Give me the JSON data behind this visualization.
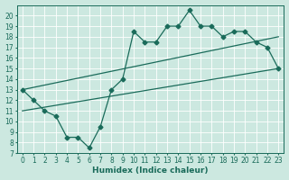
{
  "xlabel": "Humidex (Indice chaleur)",
  "bg_color": "#cce8e0",
  "line_color": "#1a6b5a",
  "grid_color": "#ffffff",
  "xlim": [
    -0.5,
    23.5
  ],
  "ylim": [
    7,
    21
  ],
  "xticks": [
    0,
    1,
    2,
    3,
    4,
    5,
    6,
    7,
    8,
    9,
    10,
    11,
    12,
    13,
    14,
    15,
    16,
    17,
    18,
    19,
    20,
    21,
    22,
    23
  ],
  "yticks": [
    7,
    8,
    9,
    10,
    11,
    12,
    13,
    14,
    15,
    16,
    17,
    18,
    19,
    20
  ],
  "line1_x": [
    0,
    1,
    2,
    3,
    4,
    5,
    6,
    7,
    8,
    9,
    10,
    11,
    12,
    13,
    14,
    15,
    16,
    17,
    18,
    19,
    20,
    21,
    22,
    23
  ],
  "line1_y": [
    13,
    12,
    11,
    10.5,
    8.5,
    8.5,
    7.5,
    9.5,
    13,
    14,
    18.5,
    17.5,
    17.5,
    19,
    19,
    20.5,
    19,
    19,
    18,
    18.5,
    18.5,
    17.5,
    17,
    15
  ],
  "line2_x": [
    0,
    23
  ],
  "line2_y": [
    11,
    15
  ],
  "line3_x": [
    0,
    23
  ],
  "line3_y": [
    13,
    18
  ],
  "marker": "D",
  "markersize": 2.5,
  "linewidth": 0.9
}
